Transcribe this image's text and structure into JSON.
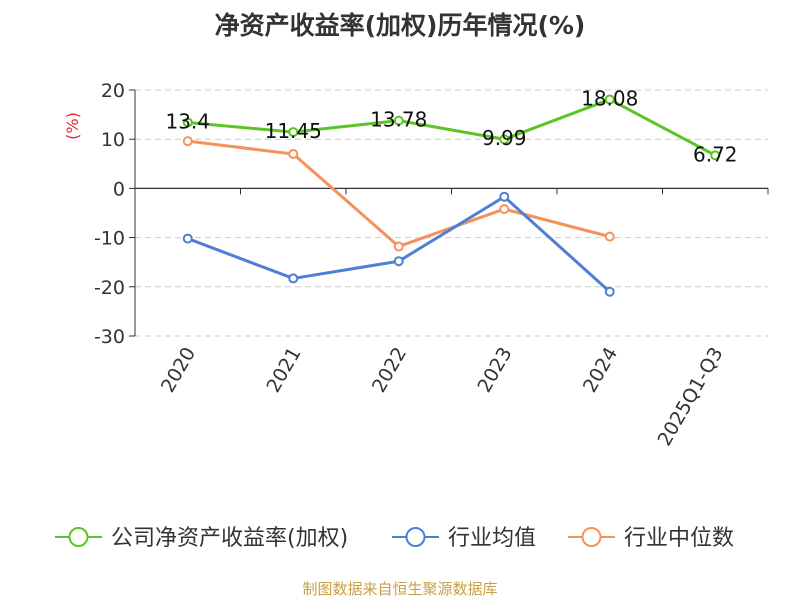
{
  "chart_data": {
    "type": "line",
    "title": "净资产收益率(加权)历年情况(%)",
    "ylabel": "(%)",
    "xlabel": "",
    "categories": [
      "2020",
      "2021",
      "2022",
      "2023",
      "2024",
      "2025Q1-Q3"
    ],
    "ylim": [
      -30,
      20
    ],
    "yticks": [
      -30,
      -20,
      -10,
      0,
      10,
      20
    ],
    "grid": true,
    "legend_position": "bottom",
    "series": [
      {
        "name": "公司净资产收益率(加权)",
        "color": "#5cc424",
        "values": [
          13.4,
          11.45,
          13.78,
          9.99,
          18.08,
          6.72
        ],
        "labels": [
          "13.4",
          "11.45",
          "13.78",
          "9.99",
          "18.08",
          "6.72"
        ]
      },
      {
        "name": "行业均值",
        "color": "#4e7fd6",
        "values": [
          -10.2,
          -18.3,
          -14.8,
          -1.7,
          -21.0,
          null
        ]
      },
      {
        "name": "行业中位数",
        "color": "#f5915a",
        "values": [
          9.6,
          7.0,
          -11.8,
          -4.2,
          -9.8,
          null
        ]
      }
    ]
  },
  "source": "制图数据来自恒生聚源数据库"
}
